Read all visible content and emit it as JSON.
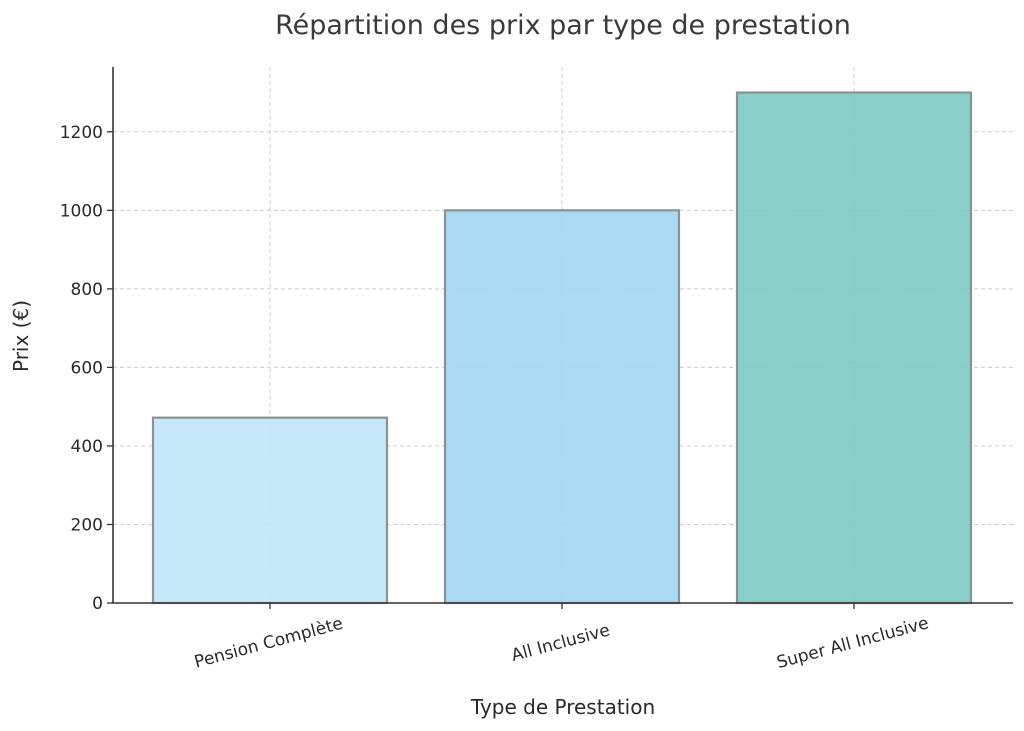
{
  "chart_data": {
    "type": "bar",
    "title": "Répartition des prix par type de prestation",
    "xlabel": "Type de Prestation",
    "ylabel": "Prix (€)",
    "categories": [
      "Pension Complète",
      "All Inclusive",
      "Super All Inclusive"
    ],
    "values": [
      472,
      1000,
      1300
    ],
    "colors": [
      "#c1e6f7",
      "#a2d7f1",
      "#80cac7"
    ],
    "edge_color": "#8c9294",
    "ylim": [
      0,
      1365
    ],
    "yticks": [
      0,
      200,
      400,
      600,
      800,
      1000,
      1200
    ],
    "grid": true
  }
}
